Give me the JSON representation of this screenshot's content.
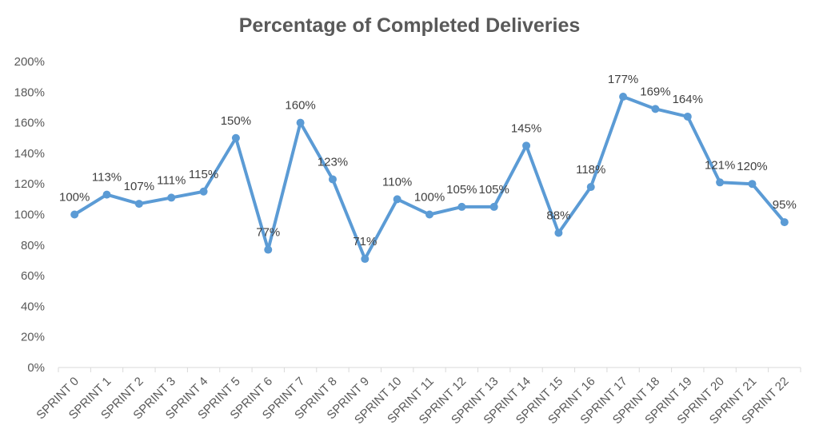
{
  "chart_data": {
    "type": "line",
    "title": "Percentage of Completed Deliveries",
    "xlabel": "",
    "ylabel": "",
    "ylim": [
      0,
      200
    ],
    "y_ticks": [
      "0%",
      "20%",
      "40%",
      "60%",
      "80%",
      "100%",
      "120%",
      "140%",
      "160%",
      "180%",
      "200%"
    ],
    "categories": [
      "SPRINT 0",
      "SPRINT 1",
      "SPRINT 2",
      "SPRINT 3",
      "SPRINT 4",
      "SPRINT 5",
      "SPRINT 6",
      "SPRINT 7",
      "SPRINT 8",
      "SPRINT 9",
      "SPRINT 10",
      "SPRINT 11",
      "SPRINT 12",
      "SPRINT 13",
      "SPRINT 14",
      "SPRINT 15",
      "SPRINT 16",
      "SPRINT 17",
      "SPRINT 18",
      "SPRINT 19",
      "SPRINT 20",
      "SPRINT 21",
      "SPRINT 22"
    ],
    "series": [
      {
        "values": [
          100,
          113,
          107,
          111,
          115,
          150,
          77,
          160,
          123,
          71,
          110,
          100,
          105,
          105,
          145,
          88,
          118,
          177,
          169,
          164,
          121,
          120,
          95
        ],
        "labels": [
          "100%",
          "113%",
          "107%",
          "111%",
          "115%",
          "150%",
          "77%",
          "160%",
          "123%",
          "71%",
          "110%",
          "100%",
          "105%",
          "105%",
          "145%",
          "88%",
          "118%",
          "177%",
          "169%",
          "164%",
          "121%",
          "120%",
          "95%"
        ],
        "color": "#5B9BD5"
      }
    ],
    "grid": false,
    "legend": "none"
  }
}
